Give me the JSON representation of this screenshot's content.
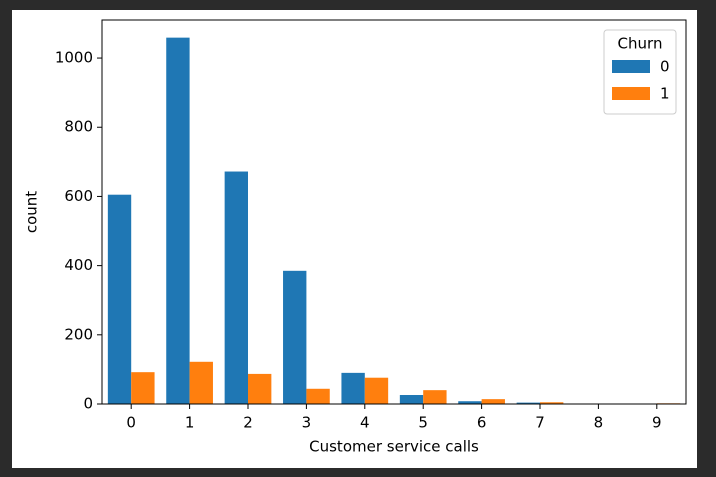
{
  "chart_data": {
    "type": "bar",
    "xlabel": "Customer service calls",
    "ylabel": "count",
    "categories": [
      "0",
      "1",
      "2",
      "3",
      "4",
      "5",
      "6",
      "7",
      "8",
      "9"
    ],
    "series": [
      {
        "name": "0",
        "color": "#1f77b4",
        "values": [
          605,
          1059,
          672,
          385,
          90,
          26,
          8,
          4,
          1,
          0
        ]
      },
      {
        "name": "1",
        "color": "#ff7f0e",
        "values": [
          92,
          122,
          87,
          44,
          76,
          40,
          14,
          5,
          1,
          2
        ]
      }
    ],
    "legend_title": "Churn",
    "legend_position": "upper right",
    "ylim": [
      0,
      1110
    ],
    "yticks": [
      0,
      200,
      400,
      600,
      800,
      1000
    ],
    "grid": false
  }
}
